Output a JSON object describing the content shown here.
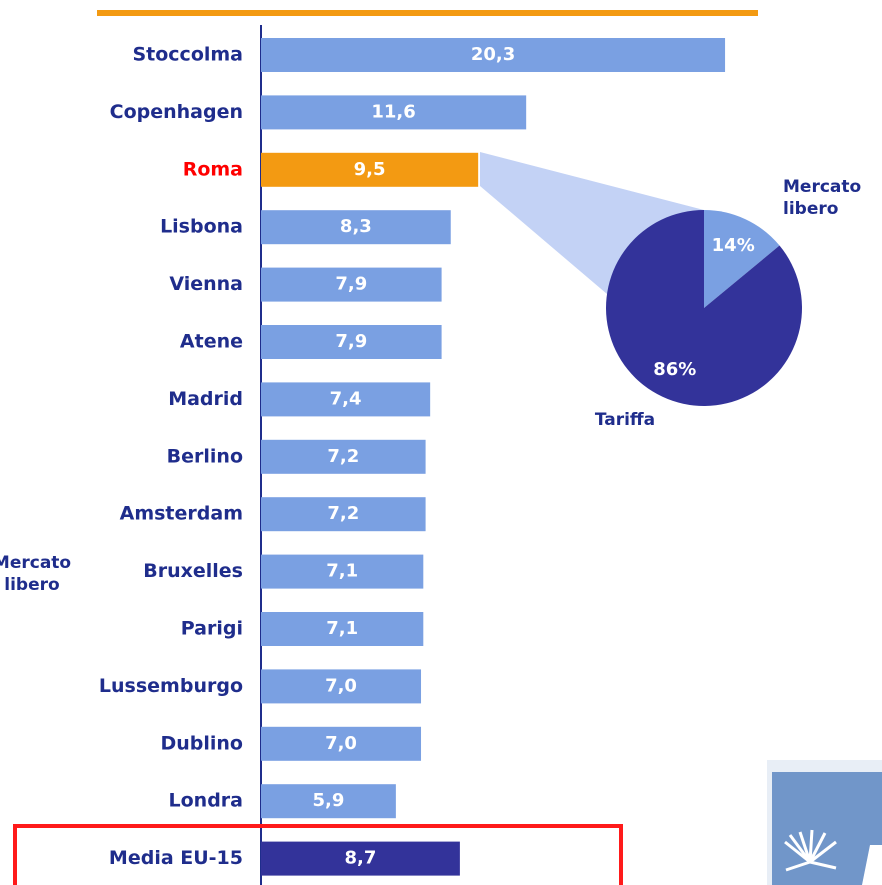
{
  "chart_data": [
    {
      "type": "bar",
      "categories": [
        "Stoccolma",
        "Copenhagen",
        "Roma",
        "Lisbona",
        "Vienna",
        "Atene",
        "Madrid",
        "Berlino",
        "Amsterdam",
        "Bruxelles",
        "Parigi",
        "Lussemburgo",
        "Dublino",
        "Londra",
        "Media EU-15"
      ],
      "values": [
        20.3,
        11.6,
        9.5,
        8.3,
        7.9,
        7.9,
        7.4,
        7.2,
        7.2,
        7.1,
        7.1,
        7.0,
        7.0,
        5.9,
        8.7
      ],
      "value_labels": [
        "20,3",
        "11,6",
        "9,5",
        "8,3",
        "7,9",
        "7,9",
        "7,4",
        "7,2",
        "7,2",
        "7,1",
        "7,1",
        "7,0",
        "7,0",
        "5,9",
        "8,7"
      ],
      "colors": [
        "#7aa0e2",
        "#7aa0e2",
        "#f39a12",
        "#7aa0e2",
        "#7aa0e2",
        "#7aa0e2",
        "#7aa0e2",
        "#7aa0e2",
        "#7aa0e2",
        "#7aa0e2",
        "#7aa0e2",
        "#7aa0e2",
        "#7aa0e2",
        "#7aa0e2",
        "#33339a"
      ],
      "label_colors": [
        "#1f2d8c",
        "#1f2d8c",
        "#ff0000",
        "#1f2d8c",
        "#1f2d8c",
        "#1f2d8c",
        "#1f2d8c",
        "#1f2d8c",
        "#1f2d8c",
        "#1f2d8c",
        "#1f2d8c",
        "#1f2d8c",
        "#1f2d8c",
        "#1f2d8c",
        "#1f2d8c"
      ],
      "annotations": [
        "Mercato libero"
      ]
    },
    {
      "type": "pie",
      "categories": [
        "Mercato libero",
        "Tariffa"
      ],
      "values": [
        14,
        86
      ],
      "value_labels": [
        "14%",
        "86%"
      ],
      "colors": [
        "#7aa0e2",
        "#33339a"
      ]
    }
  ]
}
